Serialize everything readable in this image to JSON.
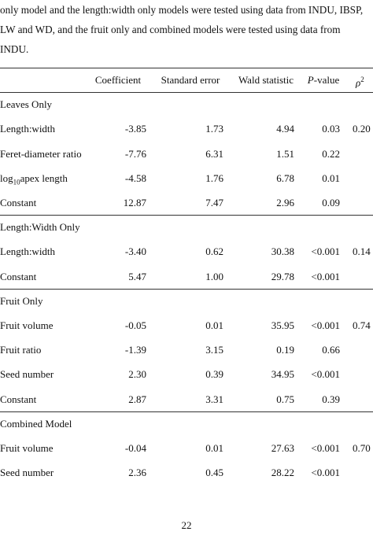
{
  "intro_lines": [
    "only model and the length:width only models were tested using data from INDU, IBSP,",
    "LW and WD, and the fruit only and combined models were tested using data from",
    "INDU."
  ],
  "header": {
    "coefficient": "Coefficient",
    "standard_error": "Standard error",
    "wald": "Wald statistic",
    "p_italic": "P",
    "p_rest": "-value",
    "rho_symbol": "ρ",
    "rho_sup": "2"
  },
  "sections": [
    {
      "title": "Leaves Only",
      "rows": [
        {
          "label": "Length:width",
          "coef": "-3.85",
          "se": "1.73",
          "wald": "4.94",
          "p": "0.03",
          "rho": "0.20"
        },
        {
          "label": "Feret-diameter ratio",
          "coef": "-7.76",
          "se": "6.31",
          "wald": "1.51",
          "p": "0.22",
          "rho": ""
        },
        {
          "label_prefix": "log",
          "label_sub": "10",
          "label_suffix": "apex length",
          "coef": "-4.58",
          "se": "1.76",
          "wald": "6.78",
          "p": "0.01",
          "rho": ""
        },
        {
          "label": "Constant",
          "coef": "12.87",
          "se": "7.47",
          "wald": "2.96",
          "p": "0.09",
          "rho": ""
        }
      ]
    },
    {
      "title": "Length:Width Only",
      "rows": [
        {
          "label": "Length:width",
          "coef": "-3.40",
          "se": "0.62",
          "wald": "30.38",
          "p": "<0.001",
          "rho": "0.14"
        },
        {
          "label": "Constant",
          "coef": "5.47",
          "se": "1.00",
          "wald": "29.78",
          "p": "<0.001",
          "rho": ""
        }
      ]
    },
    {
      "title": "Fruit Only",
      "rows": [
        {
          "label": "Fruit volume",
          "coef": "-0.05",
          "se": "0.01",
          "wald": "35.95",
          "p": "<0.001",
          "rho": "0.74"
        },
        {
          "label": "Fruit ratio",
          "coef": "-1.39",
          "se": "3.15",
          "wald": "0.19",
          "p": "0.66",
          "rho": ""
        },
        {
          "label": "Seed number",
          "coef": "2.30",
          "se": "0.39",
          "wald": "34.95",
          "p": "<0.001",
          "rho": ""
        },
        {
          "label": "Constant",
          "coef": "2.87",
          "se": "3.31",
          "wald": "0.75",
          "p": "0.39",
          "rho": ""
        }
      ]
    },
    {
      "title": "Combined Model",
      "rows": [
        {
          "label": "Fruit volume",
          "coef": "-0.04",
          "se": "0.01",
          "wald": "27.63",
          "p": "<0.001",
          "rho": "0.70"
        },
        {
          "label": "Seed number",
          "coef": "2.36",
          "se": "0.45",
          "wald": "28.22",
          "p": "<0.001",
          "rho": ""
        }
      ]
    }
  ],
  "page_number": "22"
}
